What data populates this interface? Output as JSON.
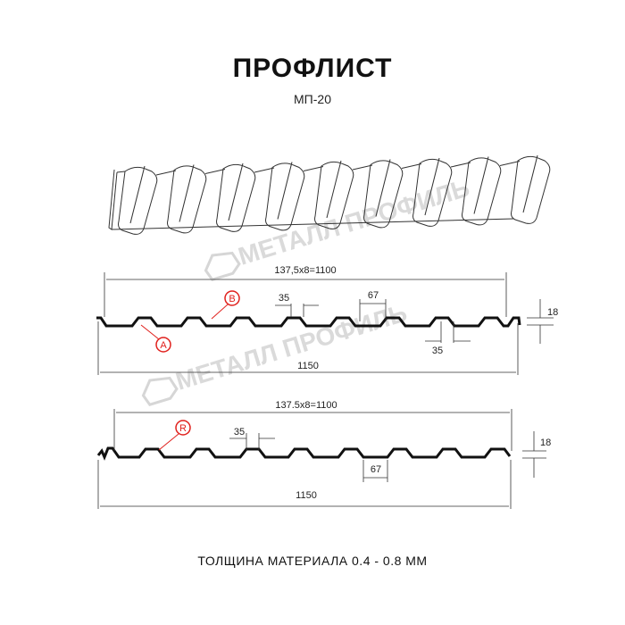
{
  "title": "ПРОФЛИСТ",
  "subtitle": "МП-20",
  "watermark": "МЕТАЛЛ ПРОФИЛЬ",
  "footer": "ТОЛЩИНА МАТЕРИАЛА 0.4 - 0.8 ММ",
  "profile_a": {
    "pitch_label": "137,5x8=1100",
    "top_width": "35",
    "mid_width": "67",
    "bottom_width": "35",
    "height": "18",
    "total_width": "1150",
    "marker_a": "A",
    "marker_b": "B"
  },
  "profile_r": {
    "pitch_label": "137.5x8=1100",
    "top_width": "35",
    "bottom_width": "67",
    "height": "18",
    "total_width": "1150",
    "marker_r": "R"
  },
  "colors": {
    "marker": "#e0201c",
    "line": "#111111",
    "watermark": "#d0d0d0"
  }
}
